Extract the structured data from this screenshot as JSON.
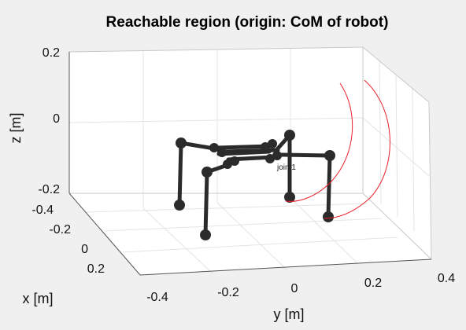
{
  "chart_data": {
    "type": "3d-line",
    "title": "Reachable region (origin: CoM of robot)",
    "xlabel": "x  [m]",
    "ylabel": "y  [m]",
    "zlabel": "z  [m]",
    "x_ticks": [
      "-0.4",
      "-0.2",
      "0",
      "0.2"
    ],
    "y_ticks": [
      "-0.4",
      "-0.2",
      "0",
      "0.2",
      "0.4"
    ],
    "z_ticks": [
      "0.2",
      "0",
      "-0.2"
    ],
    "grid": true,
    "annotation": "joint1",
    "colors": {
      "robot": "#2b2b2b",
      "reach_curve": "#e8202a",
      "background": "#f0f0f0",
      "axes_face": "#ffffff",
      "grid": "#e0e0e0"
    }
  }
}
